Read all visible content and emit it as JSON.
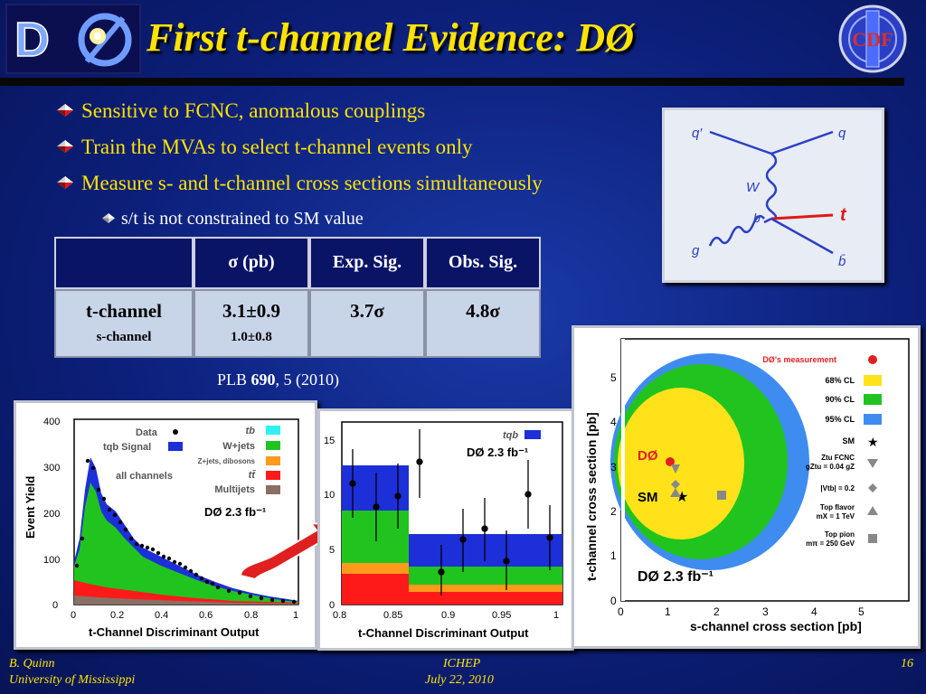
{
  "header": {
    "title": "First t-channel Evidence: DØ",
    "logo_left_text": "DØ",
    "logo_right_text": "CDF"
  },
  "bullets": [
    "Sensitive to FCNC, anomalous couplings",
    "Train the MVAs to select t-channel events only",
    "Measure s- and t-channel cross sections simultaneously"
  ],
  "sub_bullet": "s/t is not constrained to SM value",
  "feynman": {
    "labels": {
      "q_in": "q′",
      "q_out": "q",
      "w": "W",
      "b": "b",
      "t": "t",
      "g": "g",
      "bbar": "b̄"
    }
  },
  "table": {
    "headers": [
      "",
      "σ (pb)",
      "Exp. Sig.",
      "Obs. Sig."
    ],
    "row1": [
      "t-channel",
      "3.1±0.9",
      "3.7σ",
      "4.8σ"
    ],
    "row2": [
      "s-channel",
      "1.0±0.8",
      "",
      ""
    ]
  },
  "reference": {
    "prefix": "PLB ",
    "volume": "690",
    "suffix": ", 5 (2010)"
  },
  "plot_left": {
    "ylabel": "Event Yield",
    "xlabel": "t-Channel Discriminant Output",
    "xticks": [
      "0",
      "0.2",
      "0.4",
      "0.6",
      "0.8",
      "1"
    ],
    "yticks": [
      "0",
      "100",
      "200",
      "300",
      "400"
    ],
    "legend_left": [
      "Data",
      "tqb Signal",
      "all channels"
    ],
    "legend_right": [
      "tb",
      "W+jets",
      "Z+jets, dibosons",
      "tt̄",
      "Multijets"
    ],
    "lumi": "DØ   2.3 fb⁻¹"
  },
  "plot_mid": {
    "xlabel": "t-Channel Discriminant Output",
    "xticks": [
      "0.8",
      "0.85",
      "0.9",
      "0.95",
      "1"
    ],
    "yticks": [
      "0",
      "5",
      "10",
      "15"
    ],
    "legend": "tqb",
    "lumi": "DØ   2.3 fb⁻¹"
  },
  "plot_right": {
    "xlabel": "s-channel cross section [pb]",
    "ylabel": "t-channel cross section [pb]",
    "xticks": [
      "0",
      "1",
      "2",
      "3",
      "4",
      "5"
    ],
    "yticks": [
      "0",
      "1",
      "2",
      "3",
      "4",
      "5"
    ],
    "legend": [
      "DØ's measurement",
      "68% CL",
      "90% CL",
      "95% CL",
      "SM",
      "Ztu FCNC",
      "gZtu = 0.04 gZ",
      "|Vtb| = 0.2",
      "Top flavor",
      "mX = 1 TeV",
      "Top pion",
      "mπ = 250 GeV"
    ],
    "marker_d0": "DØ",
    "marker_sm": "SM",
    "lumi": "DØ   2.3 fb⁻¹"
  },
  "footer": {
    "author": "B. Quinn",
    "affiliation": "University of Mississippi",
    "conference": "ICHEP",
    "date": "July 22, 2010",
    "page": "16"
  }
}
